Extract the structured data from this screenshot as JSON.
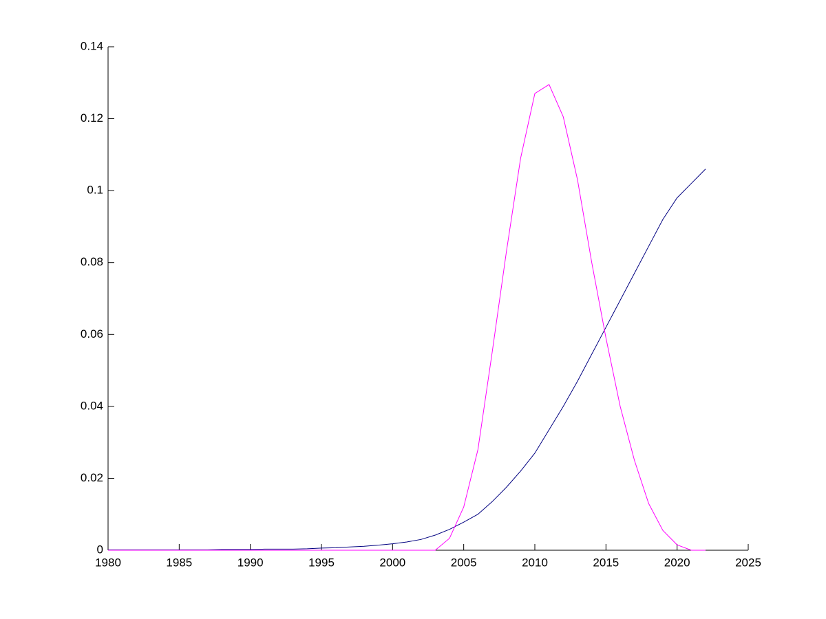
{
  "chart_data": {
    "type": "line",
    "x": [
      1980,
      1981,
      1982,
      1983,
      1984,
      1985,
      1986,
      1987,
      1988,
      1989,
      1990,
      1991,
      1992,
      1993,
      1994,
      1995,
      1996,
      1997,
      1998,
      1999,
      2000,
      2001,
      2002,
      2003,
      2004,
      2005,
      2006,
      2007,
      2008,
      2009,
      2010,
      2011,
      2012,
      2013,
      2014,
      2015,
      2016,
      2017,
      2018,
      2019,
      2020,
      2021,
      2022
    ],
    "series": [
      {
        "color": "#000080",
        "values": [
          0.0001,
          0.0001,
          0.0001,
          0.0001,
          0.0001,
          0.0001,
          0.0001,
          0.0001,
          0.0002,
          0.0002,
          0.0002,
          0.0003,
          0.0003,
          0.0003,
          0.0004,
          0.0006,
          0.0007,
          0.0009,
          0.0011,
          0.0014,
          0.0018,
          0.0023,
          0.003,
          0.0042,
          0.0058,
          0.0078,
          0.01,
          0.0135,
          0.0175,
          0.022,
          0.027,
          0.0335,
          0.04,
          0.047,
          0.0545,
          0.062,
          0.0695,
          0.077,
          0.0845,
          0.092,
          0.098,
          0.102,
          0.106
        ]
      },
      {
        "color": "#ff00ff",
        "values": [
          0,
          0,
          0,
          0,
          0,
          0,
          0,
          0,
          0,
          0,
          0,
          0,
          0,
          0,
          0,
          0,
          0,
          0,
          0,
          0,
          0,
          0,
          0,
          0,
          0.0033,
          0.012,
          0.028,
          0.055,
          0.083,
          0.109,
          0.127,
          0.1295,
          0.1205,
          0.103,
          0.08,
          0.059,
          0.04,
          0.025,
          0.013,
          0.0055,
          0.0015,
          0,
          0
        ]
      }
    ],
    "xlim": [
      1980,
      2025
    ],
    "xticks": [
      1980,
      1985,
      1990,
      1995,
      2000,
      2005,
      2010,
      2015,
      2020,
      2025
    ],
    "ylim": [
      0,
      0.14
    ],
    "yticks": [
      0,
      0.02,
      0.04,
      0.06,
      0.08,
      0.1,
      0.12,
      0.14
    ],
    "grid": false
  }
}
